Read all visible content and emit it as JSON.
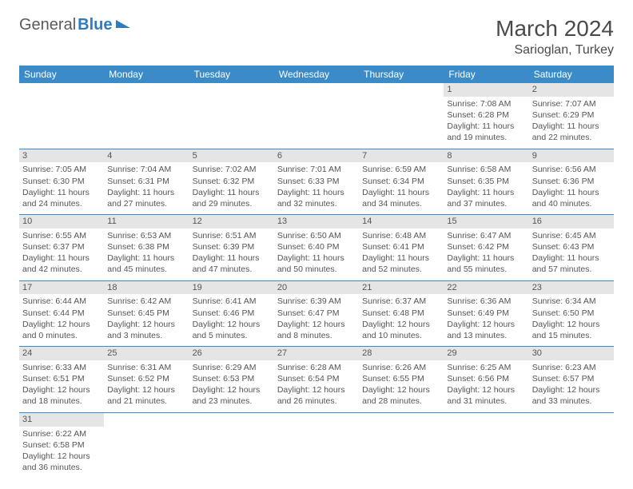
{
  "logo": {
    "part1": "General",
    "part2": "Blue"
  },
  "title": "March 2024",
  "location": "Sarioglan, Turkey",
  "colors": {
    "header_bg": "#3b8bc8",
    "header_text": "#ffffff",
    "daynum_bg": "#e5e5e5",
    "border": "#3b8bc8",
    "logo_gray": "#5a5a5a",
    "logo_blue": "#2d7cc0"
  },
  "weekdays": [
    "Sunday",
    "Monday",
    "Tuesday",
    "Wednesday",
    "Thursday",
    "Friday",
    "Saturday"
  ],
  "weeks": [
    [
      null,
      null,
      null,
      null,
      null,
      {
        "n": "1",
        "sr": "Sunrise: 7:08 AM",
        "ss": "Sunset: 6:28 PM",
        "dl": "Daylight: 11 hours and 19 minutes."
      },
      {
        "n": "2",
        "sr": "Sunrise: 7:07 AM",
        "ss": "Sunset: 6:29 PM",
        "dl": "Daylight: 11 hours and 22 minutes."
      }
    ],
    [
      {
        "n": "3",
        "sr": "Sunrise: 7:05 AM",
        "ss": "Sunset: 6:30 PM",
        "dl": "Daylight: 11 hours and 24 minutes."
      },
      {
        "n": "4",
        "sr": "Sunrise: 7:04 AM",
        "ss": "Sunset: 6:31 PM",
        "dl": "Daylight: 11 hours and 27 minutes."
      },
      {
        "n": "5",
        "sr": "Sunrise: 7:02 AM",
        "ss": "Sunset: 6:32 PM",
        "dl": "Daylight: 11 hours and 29 minutes."
      },
      {
        "n": "6",
        "sr": "Sunrise: 7:01 AM",
        "ss": "Sunset: 6:33 PM",
        "dl": "Daylight: 11 hours and 32 minutes."
      },
      {
        "n": "7",
        "sr": "Sunrise: 6:59 AM",
        "ss": "Sunset: 6:34 PM",
        "dl": "Daylight: 11 hours and 34 minutes."
      },
      {
        "n": "8",
        "sr": "Sunrise: 6:58 AM",
        "ss": "Sunset: 6:35 PM",
        "dl": "Daylight: 11 hours and 37 minutes."
      },
      {
        "n": "9",
        "sr": "Sunrise: 6:56 AM",
        "ss": "Sunset: 6:36 PM",
        "dl": "Daylight: 11 hours and 40 minutes."
      }
    ],
    [
      {
        "n": "10",
        "sr": "Sunrise: 6:55 AM",
        "ss": "Sunset: 6:37 PM",
        "dl": "Daylight: 11 hours and 42 minutes."
      },
      {
        "n": "11",
        "sr": "Sunrise: 6:53 AM",
        "ss": "Sunset: 6:38 PM",
        "dl": "Daylight: 11 hours and 45 minutes."
      },
      {
        "n": "12",
        "sr": "Sunrise: 6:51 AM",
        "ss": "Sunset: 6:39 PM",
        "dl": "Daylight: 11 hours and 47 minutes."
      },
      {
        "n": "13",
        "sr": "Sunrise: 6:50 AM",
        "ss": "Sunset: 6:40 PM",
        "dl": "Daylight: 11 hours and 50 minutes."
      },
      {
        "n": "14",
        "sr": "Sunrise: 6:48 AM",
        "ss": "Sunset: 6:41 PM",
        "dl": "Daylight: 11 hours and 52 minutes."
      },
      {
        "n": "15",
        "sr": "Sunrise: 6:47 AM",
        "ss": "Sunset: 6:42 PM",
        "dl": "Daylight: 11 hours and 55 minutes."
      },
      {
        "n": "16",
        "sr": "Sunrise: 6:45 AM",
        "ss": "Sunset: 6:43 PM",
        "dl": "Daylight: 11 hours and 57 minutes."
      }
    ],
    [
      {
        "n": "17",
        "sr": "Sunrise: 6:44 AM",
        "ss": "Sunset: 6:44 PM",
        "dl": "Daylight: 12 hours and 0 minutes."
      },
      {
        "n": "18",
        "sr": "Sunrise: 6:42 AM",
        "ss": "Sunset: 6:45 PM",
        "dl": "Daylight: 12 hours and 3 minutes."
      },
      {
        "n": "19",
        "sr": "Sunrise: 6:41 AM",
        "ss": "Sunset: 6:46 PM",
        "dl": "Daylight: 12 hours and 5 minutes."
      },
      {
        "n": "20",
        "sr": "Sunrise: 6:39 AM",
        "ss": "Sunset: 6:47 PM",
        "dl": "Daylight: 12 hours and 8 minutes."
      },
      {
        "n": "21",
        "sr": "Sunrise: 6:37 AM",
        "ss": "Sunset: 6:48 PM",
        "dl": "Daylight: 12 hours and 10 minutes."
      },
      {
        "n": "22",
        "sr": "Sunrise: 6:36 AM",
        "ss": "Sunset: 6:49 PM",
        "dl": "Daylight: 12 hours and 13 minutes."
      },
      {
        "n": "23",
        "sr": "Sunrise: 6:34 AM",
        "ss": "Sunset: 6:50 PM",
        "dl": "Daylight: 12 hours and 15 minutes."
      }
    ],
    [
      {
        "n": "24",
        "sr": "Sunrise: 6:33 AM",
        "ss": "Sunset: 6:51 PM",
        "dl": "Daylight: 12 hours and 18 minutes."
      },
      {
        "n": "25",
        "sr": "Sunrise: 6:31 AM",
        "ss": "Sunset: 6:52 PM",
        "dl": "Daylight: 12 hours and 21 minutes."
      },
      {
        "n": "26",
        "sr": "Sunrise: 6:29 AM",
        "ss": "Sunset: 6:53 PM",
        "dl": "Daylight: 12 hours and 23 minutes."
      },
      {
        "n": "27",
        "sr": "Sunrise: 6:28 AM",
        "ss": "Sunset: 6:54 PM",
        "dl": "Daylight: 12 hours and 26 minutes."
      },
      {
        "n": "28",
        "sr": "Sunrise: 6:26 AM",
        "ss": "Sunset: 6:55 PM",
        "dl": "Daylight: 12 hours and 28 minutes."
      },
      {
        "n": "29",
        "sr": "Sunrise: 6:25 AM",
        "ss": "Sunset: 6:56 PM",
        "dl": "Daylight: 12 hours and 31 minutes."
      },
      {
        "n": "30",
        "sr": "Sunrise: 6:23 AM",
        "ss": "Sunset: 6:57 PM",
        "dl": "Daylight: 12 hours and 33 minutes."
      }
    ],
    [
      {
        "n": "31",
        "sr": "Sunrise: 6:22 AM",
        "ss": "Sunset: 6:58 PM",
        "dl": "Daylight: 12 hours and 36 minutes."
      },
      null,
      null,
      null,
      null,
      null,
      null
    ]
  ]
}
